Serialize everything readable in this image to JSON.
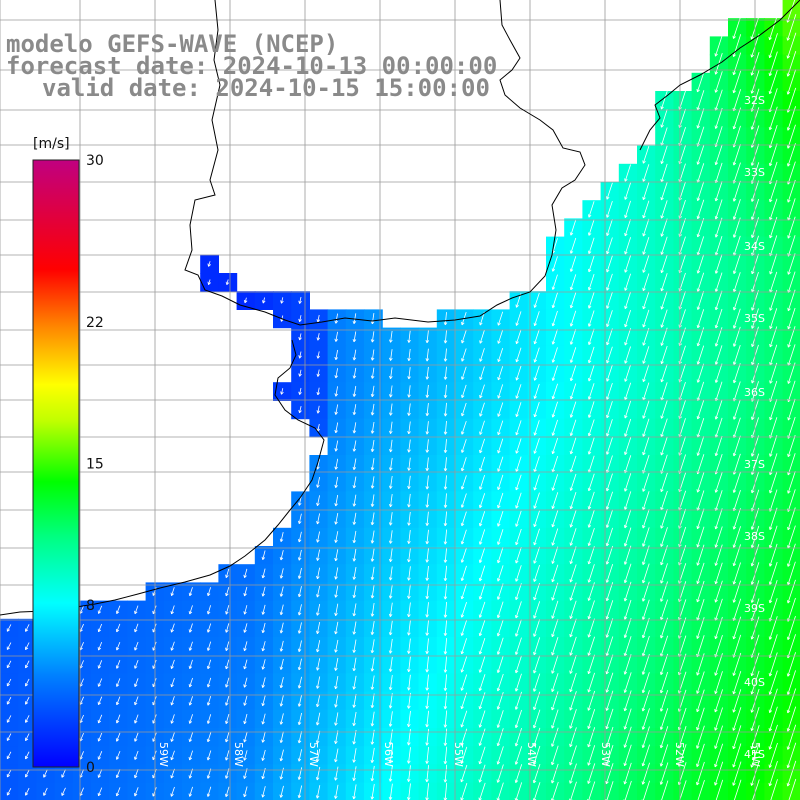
{
  "title": {
    "line1": "modelo GEFS-WAVE (NCEP)",
    "line2": "forecast date: 2024-10-13 00:00:00",
    "line3": "valid date: 2024-10-15 15:00:00"
  },
  "colorbar": {
    "unit": "[m/s]",
    "min": 0,
    "max": 30,
    "tick_labels": [
      "30",
      "22",
      "15",
      "8",
      "0"
    ],
    "tick_values": [
      30,
      22,
      15,
      8,
      0
    ]
  },
  "lat_labels": [
    "32S",
    "33S",
    "34S",
    "35S",
    "36S",
    "37S",
    "38S",
    "39S",
    "40S",
    "41S"
  ],
  "lon_labels": [
    "59W",
    "58W",
    "57W",
    "56W",
    "55W",
    "54W",
    "53W",
    "52W",
    "51W"
  ],
  "colors": {
    "land": "#ffffff",
    "coast": "#000000",
    "grid": "#9a9a9a",
    "arrow": "#ffffff"
  }
}
